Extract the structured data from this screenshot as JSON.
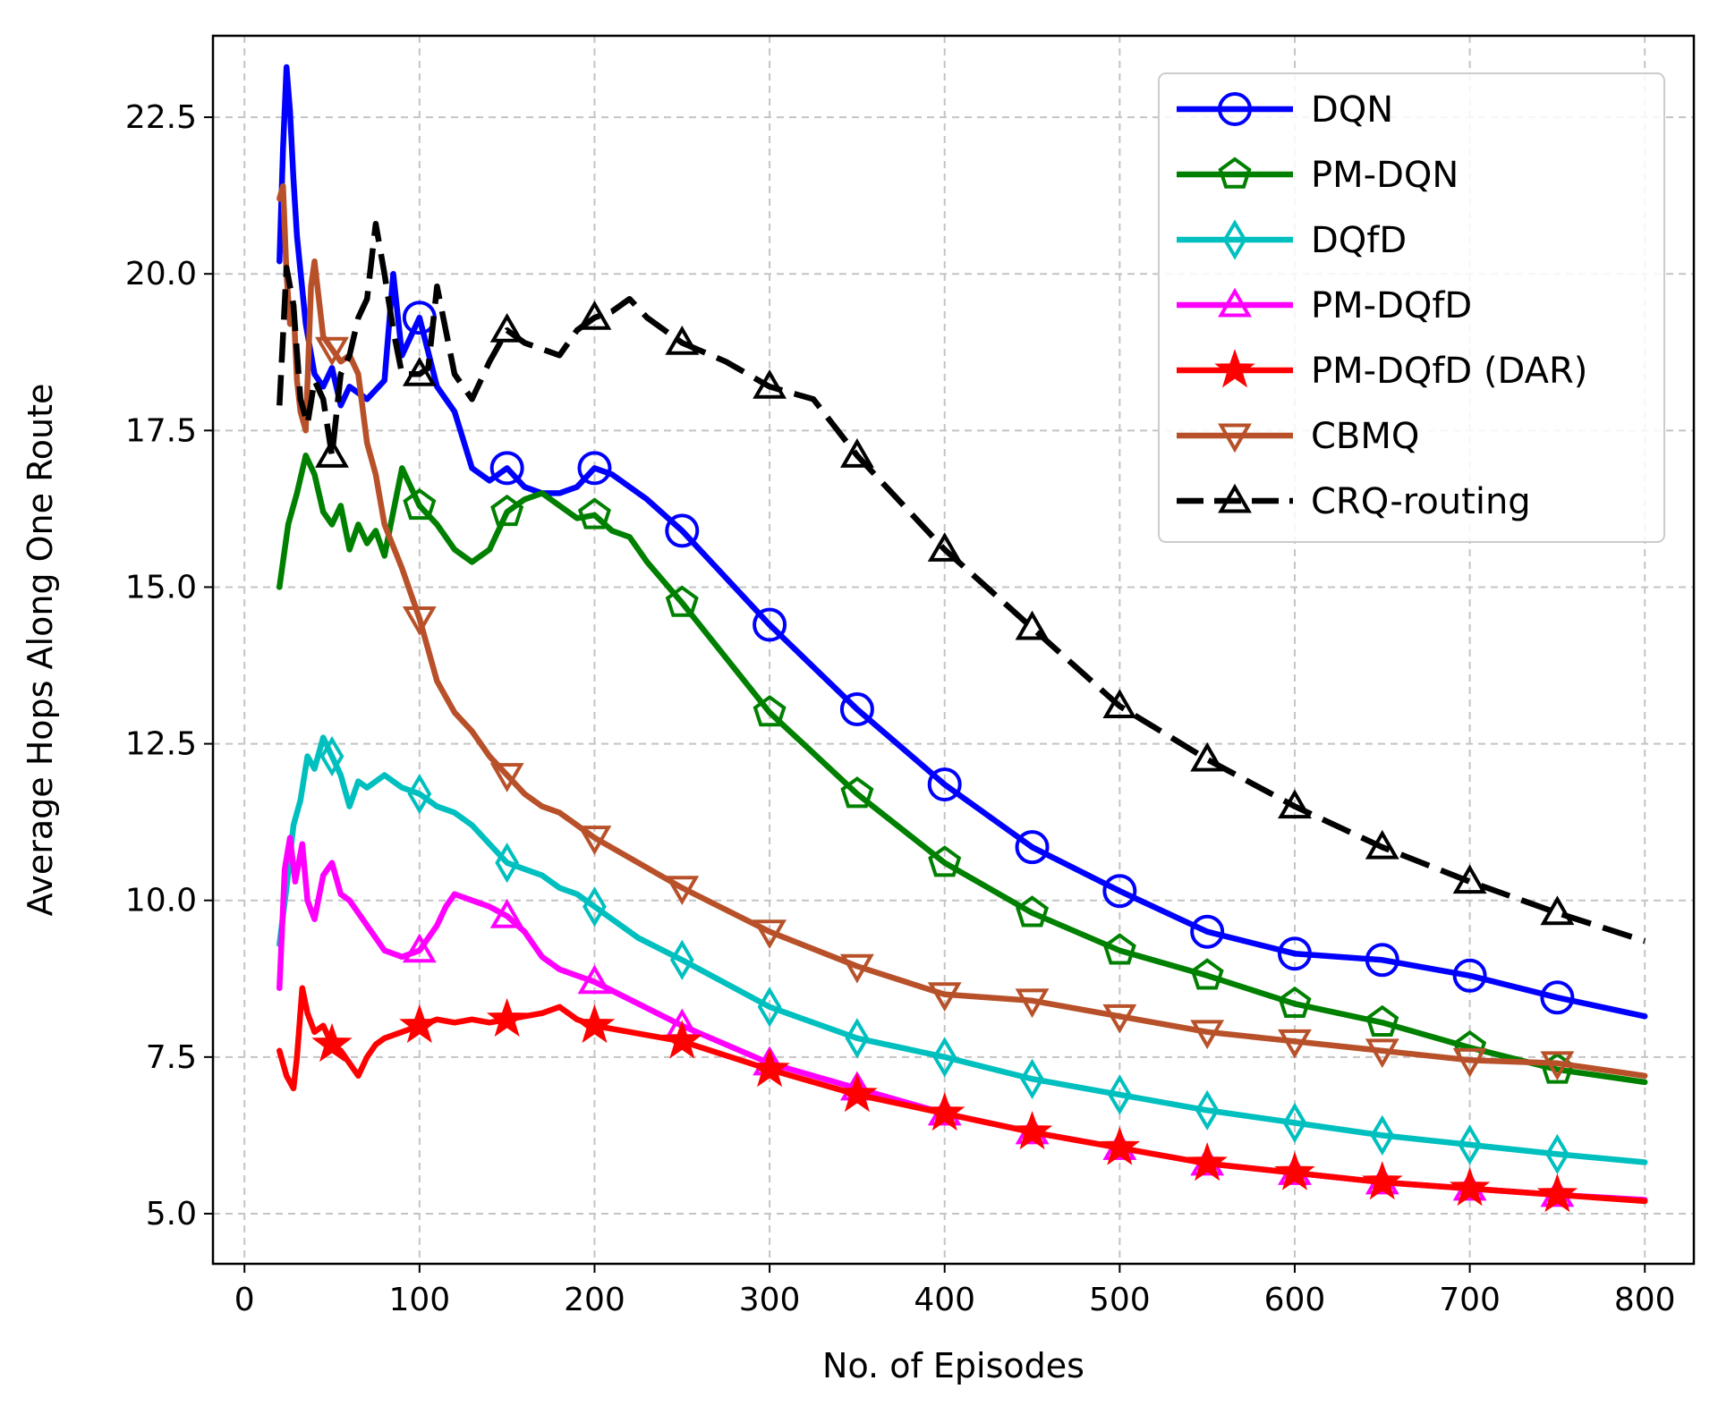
{
  "chart_data": {
    "type": "line",
    "title": "",
    "xlabel": "No. of Episodes",
    "ylabel": "Average Hops Along One Route",
    "xlim": [
      -18,
      828
    ],
    "ylim": [
      4.2,
      23.8
    ],
    "xticks": [
      0,
      100,
      200,
      300,
      400,
      500,
      600,
      700,
      800
    ],
    "yticks": [
      5.0,
      7.5,
      10.0,
      12.5,
      15.0,
      17.5,
      20.0,
      22.5
    ],
    "xtick_labels": [
      "0",
      "100",
      "200",
      "300",
      "400",
      "500",
      "600",
      "700",
      "800"
    ],
    "ytick_labels": [
      "5.0",
      "7.5",
      "10.0",
      "12.5",
      "15.0",
      "17.5",
      "20.0",
      "22.5"
    ],
    "grid": true,
    "legend_position": "top-right",
    "series": [
      {
        "name": "DQN",
        "color": "#0000ff",
        "marker": "circle",
        "dashed": false,
        "x": [
          20,
          22,
          24,
          26,
          28,
          30,
          35,
          40,
          45,
          50,
          55,
          60,
          70,
          80,
          85,
          90,
          100,
          110,
          120,
          130,
          140,
          150,
          160,
          170,
          180,
          190,
          200,
          210,
          220,
          230,
          250,
          300,
          350,
          400,
          450,
          500,
          550,
          600,
          650,
          700,
          750,
          800
        ],
        "y": [
          20.2,
          22.0,
          23.3,
          22.6,
          21.5,
          20.6,
          19.2,
          18.4,
          18.2,
          18.5,
          17.9,
          18.2,
          18.0,
          18.3,
          20.0,
          18.7,
          19.3,
          18.2,
          17.8,
          16.9,
          16.7,
          16.9,
          16.6,
          16.5,
          16.5,
          16.6,
          16.9,
          16.8,
          16.6,
          16.4,
          15.9,
          14.4,
          13.05,
          11.85,
          10.85,
          10.15,
          9.5,
          9.15,
          9.05,
          8.8,
          8.45,
          8.15
        ],
        "marker_x": [
          100,
          150,
          200,
          250,
          300,
          350,
          400,
          450,
          500,
          550,
          600,
          650,
          700,
          750
        ]
      },
      {
        "name": "PM-DQN",
        "color": "#008000",
        "marker": "pentagon",
        "dashed": false,
        "x": [
          20,
          25,
          30,
          35,
          40,
          45,
          50,
          55,
          60,
          65,
          70,
          75,
          80,
          90,
          100,
          110,
          120,
          130,
          140,
          150,
          160,
          170,
          180,
          190,
          200,
          210,
          220,
          230,
          250,
          300,
          350,
          400,
          450,
          500,
          550,
          600,
          650,
          700,
          750,
          800
        ],
        "y": [
          15.0,
          16.0,
          16.5,
          17.1,
          16.8,
          16.2,
          16.0,
          16.3,
          15.6,
          16.0,
          15.7,
          15.9,
          15.5,
          16.9,
          16.3,
          16.0,
          15.6,
          15.4,
          15.6,
          16.2,
          16.4,
          16.5,
          16.3,
          16.1,
          16.15,
          15.9,
          15.8,
          15.4,
          14.75,
          13.0,
          11.7,
          10.6,
          9.8,
          9.2,
          8.8,
          8.35,
          8.05,
          7.65,
          7.3,
          7.1
        ],
        "marker_x": [
          100,
          150,
          200,
          250,
          300,
          350,
          400,
          450,
          500,
          550,
          600,
          650,
          700,
          750
        ]
      },
      {
        "name": "DQfD",
        "color": "#00bfbf",
        "marker": "thin-diamond",
        "dashed": false,
        "x": [
          20,
          24,
          28,
          32,
          36,
          40,
          45,
          50,
          55,
          60,
          65,
          70,
          80,
          90,
          100,
          110,
          120,
          130,
          140,
          150,
          160,
          170,
          180,
          190,
          200,
          225,
          250,
          300,
          350,
          400,
          450,
          500,
          550,
          600,
          650,
          700,
          750,
          800
        ],
        "y": [
          9.3,
          10.2,
          11.2,
          11.6,
          12.3,
          12.1,
          12.6,
          12.3,
          12.0,
          11.5,
          11.9,
          11.8,
          12.0,
          11.8,
          11.7,
          11.5,
          11.4,
          11.2,
          10.9,
          10.6,
          10.5,
          10.4,
          10.2,
          10.1,
          9.9,
          9.4,
          9.05,
          8.3,
          7.8,
          7.5,
          7.15,
          6.9,
          6.65,
          6.45,
          6.25,
          6.1,
          5.95,
          5.82
        ],
        "marker_x": [
          50,
          100,
          150,
          200,
          250,
          300,
          350,
          400,
          450,
          500,
          550,
          600,
          650,
          700,
          750
        ]
      },
      {
        "name": "PM-DQfD",
        "color": "#ff00ff",
        "marker": "triangle-up",
        "dashed": false,
        "x": [
          20,
          23,
          26,
          29,
          33,
          36,
          40,
          45,
          50,
          55,
          60,
          70,
          80,
          90,
          100,
          110,
          115,
          120,
          130,
          140,
          150,
          160,
          170,
          180,
          200,
          250,
          300,
          350,
          400,
          450,
          500,
          550,
          600,
          650,
          700,
          750,
          800
        ],
        "y": [
          8.6,
          10.5,
          11.0,
          10.3,
          10.9,
          10.0,
          9.7,
          10.4,
          10.6,
          10.1,
          10.0,
          9.6,
          9.2,
          9.1,
          9.2,
          9.6,
          9.9,
          10.1,
          10.0,
          9.9,
          9.75,
          9.5,
          9.1,
          8.9,
          8.7,
          8.0,
          7.4,
          7.0,
          6.6,
          6.3,
          6.05,
          5.8,
          5.65,
          5.5,
          5.4,
          5.3,
          5.22
        ],
        "marker_x": [
          100,
          150,
          200,
          250,
          300,
          350,
          400,
          450,
          500,
          550,
          600,
          650,
          700,
          750
        ]
      },
      {
        "name": "PM-DQfD (DAR)",
        "color": "#ff0000",
        "marker": "star",
        "dashed": false,
        "x": [
          20,
          24,
          28,
          30,
          33,
          36,
          40,
          45,
          50,
          55,
          60,
          65,
          70,
          75,
          80,
          90,
          100,
          110,
          120,
          130,
          140,
          150,
          160,
          170,
          180,
          190,
          200,
          220,
          250,
          300,
          350,
          400,
          450,
          500,
          550,
          600,
          650,
          700,
          750,
          800
        ],
        "y": [
          7.6,
          7.2,
          7.0,
          7.5,
          8.6,
          8.2,
          7.9,
          8.0,
          7.7,
          7.6,
          7.4,
          7.2,
          7.5,
          7.7,
          7.8,
          7.9,
          8.0,
          8.1,
          8.05,
          8.1,
          8.05,
          8.1,
          8.15,
          8.2,
          8.3,
          8.1,
          8.0,
          7.9,
          7.75,
          7.3,
          6.9,
          6.6,
          6.3,
          6.05,
          5.8,
          5.65,
          5.5,
          5.4,
          5.3,
          5.2
        ],
        "marker_x": [
          50,
          100,
          150,
          200,
          250,
          300,
          350,
          400,
          450,
          500,
          550,
          600,
          650,
          700,
          750
        ]
      },
      {
        "name": "CBMQ",
        "color": "#b8512a",
        "marker": "triangle-down",
        "dashed": false,
        "x": [
          20,
          22,
          24,
          26,
          28,
          30,
          32,
          35,
          38,
          40,
          45,
          50,
          55,
          60,
          65,
          70,
          75,
          80,
          90,
          100,
          110,
          120,
          130,
          140,
          150,
          160,
          170,
          180,
          200,
          250,
          300,
          350,
          400,
          450,
          500,
          550,
          600,
          650,
          700,
          750,
          800
        ],
        "y": [
          21.2,
          21.4,
          20.0,
          19.2,
          19.5,
          18.3,
          17.8,
          17.5,
          19.8,
          20.2,
          19.0,
          18.8,
          18.6,
          18.7,
          18.4,
          17.3,
          16.8,
          16.0,
          15.3,
          14.5,
          13.5,
          13.0,
          12.7,
          12.3,
          12.0,
          11.7,
          11.5,
          11.4,
          11.0,
          10.2,
          9.5,
          8.95,
          8.5,
          8.4,
          8.15,
          7.9,
          7.75,
          7.6,
          7.45,
          7.4,
          7.2
        ],
        "marker_x": [
          50,
          100,
          150,
          200,
          250,
          300,
          350,
          400,
          450,
          500,
          550,
          600,
          650,
          700,
          750
        ]
      },
      {
        "name": "CRQ-routing",
        "color": "#000000",
        "marker": "triangle-up",
        "dashed": true,
        "x": [
          20,
          24,
          28,
          32,
          36,
          40,
          45,
          50,
          55,
          60,
          65,
          70,
          75,
          80,
          85,
          90,
          95,
          100,
          105,
          110,
          120,
          130,
          140,
          150,
          160,
          170,
          180,
          190,
          200,
          210,
          220,
          230,
          250,
          275,
          300,
          325,
          350,
          400,
          450,
          500,
          550,
          600,
          650,
          700,
          750,
          800
        ],
        "y": [
          17.9,
          20.1,
          19.5,
          18.0,
          17.6,
          18.3,
          18.0,
          17.1,
          18.4,
          18.7,
          19.3,
          19.6,
          20.8,
          20.0,
          19.1,
          18.4,
          18.4,
          18.4,
          18.5,
          19.8,
          18.4,
          18.0,
          18.6,
          19.1,
          18.9,
          18.8,
          18.7,
          19.1,
          19.3,
          19.4,
          19.6,
          19.3,
          18.9,
          18.6,
          18.2,
          18.0,
          17.1,
          15.6,
          14.35,
          13.1,
          12.25,
          11.5,
          10.85,
          10.3,
          9.8,
          9.35
        ],
        "marker_x": [
          50,
          100,
          150,
          200,
          250,
          300,
          350,
          400,
          450,
          500,
          550,
          600,
          650,
          700,
          750
        ]
      }
    ]
  }
}
